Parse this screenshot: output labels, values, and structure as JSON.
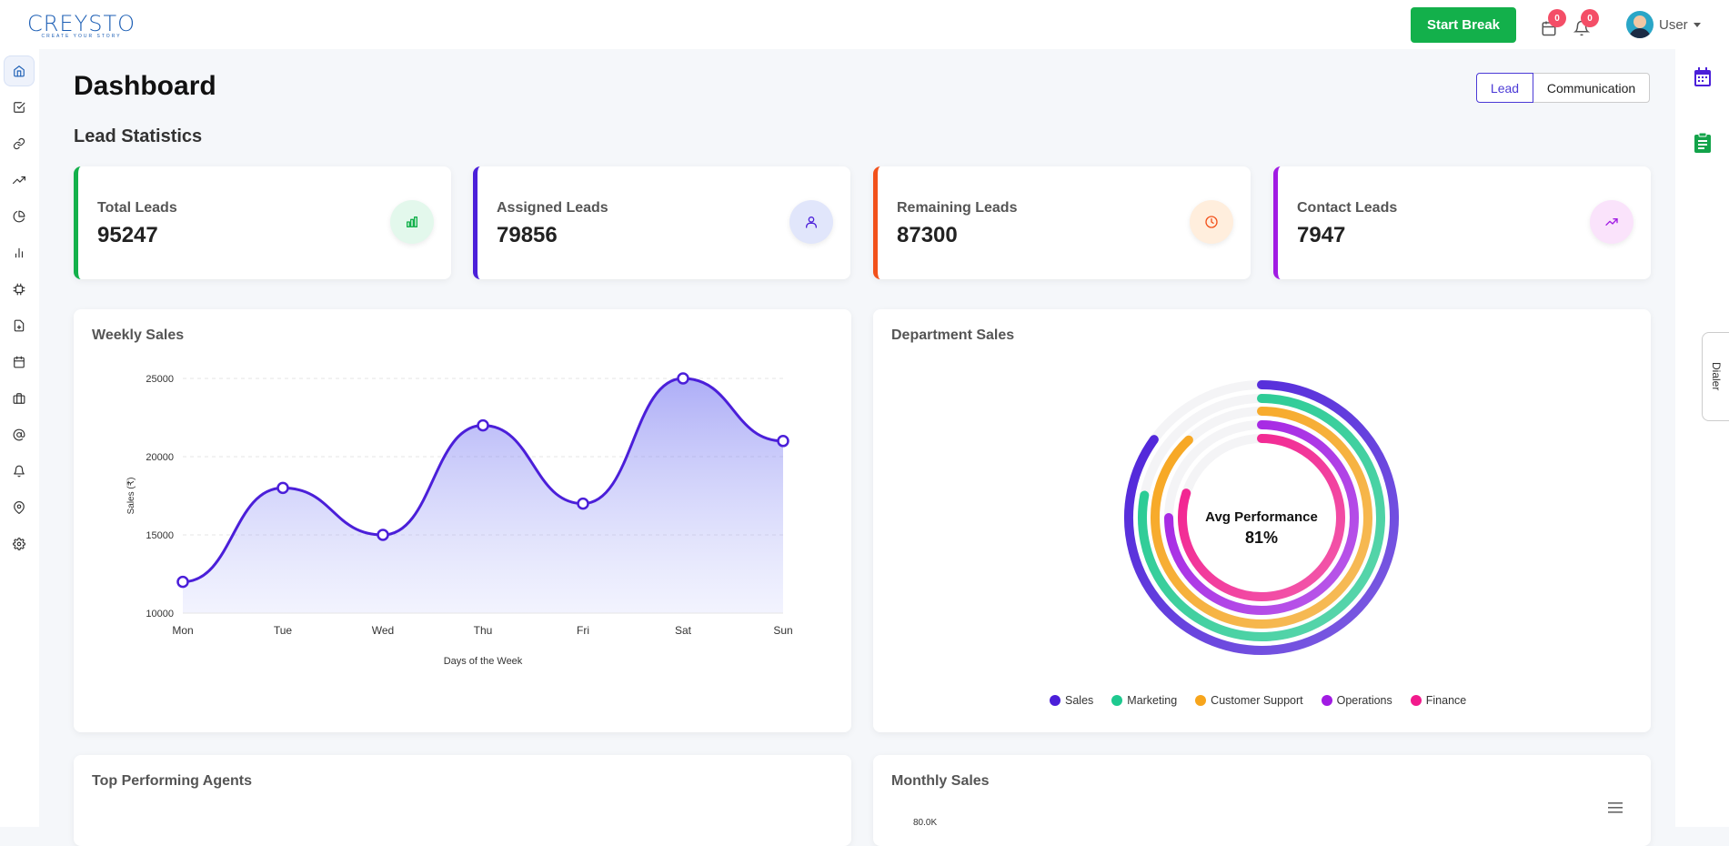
{
  "header": {
    "logo_text": "CREYSTO",
    "logo_tagline": "CREATE YOUR STORY",
    "start_break_label": "Start Break",
    "calendar_badge": "0",
    "notification_badge": "0",
    "user_label": "User"
  },
  "page": {
    "title": "Dashboard",
    "section_title": "Lead Statistics",
    "toggle": {
      "active": "Lead",
      "inactive": "Communication"
    },
    "dialer_label": "Dialer"
  },
  "colors": {
    "brand": "#1d5fb5",
    "primary": "#4b1fd9",
    "start_break": "#13b04b",
    "badge": "#f44e67"
  },
  "sidebar": {
    "icons": [
      "home-icon",
      "check-square-icon",
      "link-icon",
      "trending-up-icon",
      "pie-chart-icon",
      "bar-chart-icon",
      "settings-chip-icon",
      "file-plus-icon",
      "calendar-icon",
      "briefcase-icon",
      "at-sign-icon",
      "bell-icon",
      "map-pin-icon",
      "gear-icon"
    ]
  },
  "stats": [
    {
      "label": "Total Leads",
      "value": "95247",
      "color": "#13b04b",
      "icon": "bar-chart-icon",
      "icon_bg": "#e3f8ec",
      "icon_color": "#13b04b"
    },
    {
      "label": "Assigned Leads",
      "value": "79856",
      "color": "#4b1fd9",
      "icon": "user-icon",
      "icon_bg": "#e1e6fb",
      "icon_color": "#4b1fd9"
    },
    {
      "label": "Remaining Leads",
      "value": "87300",
      "color": "#f2511b",
      "icon": "clock-icon",
      "icon_bg": "#ffeedd",
      "icon_color": "#f2511b"
    },
    {
      "label": "Contact Leads",
      "value": "7947",
      "color": "#a11be3",
      "icon": "trending-up-icon",
      "icon_bg": "#fae3fb",
      "icon_color": "#a11be3"
    }
  ],
  "weekly": {
    "title": "Weekly Sales"
  },
  "department": {
    "title": "Department Sales",
    "center_label": "Avg Performance",
    "center_value": "81%"
  },
  "agents": {
    "title": "Top Performing Agents"
  },
  "monthly": {
    "title": "Monthly Sales",
    "first_tick": "80.0K"
  },
  "chart_data": [
    {
      "type": "area",
      "title": "Weekly Sales",
      "categories": [
        "Mon",
        "Tue",
        "Wed",
        "Thu",
        "Fri",
        "Sat",
        "Sun"
      ],
      "values": [
        12000,
        18000,
        15000,
        22000,
        17000,
        25000,
        21000
      ],
      "xlabel": "Days of the Week",
      "ylabel": "Sales (₹)",
      "ylim": [
        10000,
        25000
      ],
      "yticks": [
        "10000",
        "15000",
        "20000",
        "25000"
      ],
      "color": "#4b1fd9",
      "grid": true
    },
    {
      "type": "radialBar",
      "title": "Department Sales",
      "series": [
        {
          "name": "Sales",
          "value": 85,
          "color": "#4b1fd9"
        },
        {
          "name": "Marketing",
          "value": 78,
          "color": "#1ec98f"
        },
        {
          "name": "Customer Support",
          "value": 88,
          "color": "#f7a51c"
        },
        {
          "name": "Operations",
          "value": 75,
          "color": "#a11be3"
        },
        {
          "name": "Finance",
          "value": 80,
          "color": "#f21a8c"
        }
      ],
      "legend": "bottom"
    }
  ]
}
